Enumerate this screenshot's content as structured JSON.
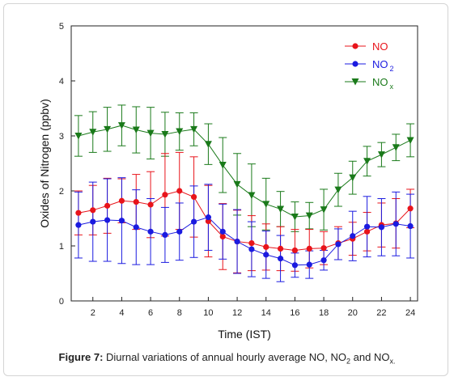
{
  "chart_data": {
    "type": "line",
    "xlabel": "Time (IST)",
    "ylabel": "Oxides of Nitrogen (ppbv)",
    "xlim": [
      0.5,
      24.5
    ],
    "ylim": [
      0,
      5
    ],
    "x_ticks": [
      2,
      4,
      6,
      8,
      10,
      12,
      14,
      16,
      18,
      20,
      22,
      24
    ],
    "y_ticks": [
      0,
      1,
      2,
      3,
      4,
      5
    ],
    "grid": false,
    "legend_position": "top-right",
    "x": [
      1,
      2,
      3,
      4,
      5,
      6,
      7,
      8,
      9,
      10,
      11,
      12,
      13,
      14,
      15,
      16,
      17,
      18,
      19,
      20,
      21,
      22,
      23,
      24
    ],
    "series": [
      {
        "name": "NO",
        "name_main": "NO",
        "name_sub": "",
        "color": "#e8141b",
        "marker": "circle",
        "values": [
          1.6,
          1.65,
          1.73,
          1.82,
          1.8,
          1.75,
          1.93,
          2.0,
          1.89,
          1.45,
          1.17,
          1.08,
          1.05,
          0.98,
          0.95,
          0.92,
          0.95,
          0.96,
          1.05,
          1.13,
          1.26,
          1.38,
          1.41,
          1.68
        ],
        "error": [
          0.4,
          0.45,
          0.5,
          0.4,
          0.5,
          0.6,
          0.75,
          0.7,
          0.73,
          0.65,
          0.6,
          0.57,
          0.5,
          0.42,
          0.4,
          0.38,
          0.35,
          0.3,
          0.3,
          0.3,
          0.35,
          0.4,
          0.45,
          0.35
        ]
      },
      {
        "name": "NO2",
        "name_main": "NO",
        "name_sub": "2",
        "color": "#1b1be0",
        "marker": "circle",
        "values": [
          1.38,
          1.44,
          1.47,
          1.46,
          1.34,
          1.26,
          1.2,
          1.26,
          1.44,
          1.52,
          1.26,
          1.08,
          0.94,
          0.84,
          0.77,
          0.65,
          0.66,
          0.74,
          1.03,
          1.18,
          1.35,
          1.34,
          1.4,
          1.36
        ],
        "error": [
          0.6,
          0.72,
          0.75,
          0.78,
          0.68,
          0.6,
          0.5,
          0.52,
          0.65,
          0.6,
          0.5,
          0.58,
          0.5,
          0.43,
          0.42,
          0.22,
          0.25,
          0.18,
          0.28,
          0.45,
          0.55,
          0.52,
          0.58,
          0.58
        ]
      },
      {
        "name": "NOx",
        "name_main": "NO",
        "name_sub": "x",
        "color": "#1a7a1a",
        "marker": "triangle-down",
        "values": [
          3.0,
          3.07,
          3.12,
          3.19,
          3.11,
          3.05,
          3.03,
          3.08,
          3.12,
          2.85,
          2.47,
          2.12,
          1.92,
          1.76,
          1.67,
          1.53,
          1.55,
          1.66,
          2.02,
          2.24,
          2.54,
          2.66,
          2.79,
          2.92
        ]
      }
    ],
    "nox_error": [
      0.37,
      0.37,
      0.4,
      0.37,
      0.42,
      0.47,
      0.4,
      0.34,
      0.3,
      0.37,
      0.5,
      0.56,
      0.57,
      0.47,
      0.32,
      0.27,
      0.24,
      0.37,
      0.3,
      0.3,
      0.27,
      0.22,
      0.24,
      0.3
    ]
  },
  "caption": {
    "label": "Figure 7:",
    "text_1": " Diurnal variations of annual hourly average NO, NO",
    "sub_1": "2",
    "text_2": " and NO",
    "sub_2": "x.",
    "text_3": ""
  }
}
